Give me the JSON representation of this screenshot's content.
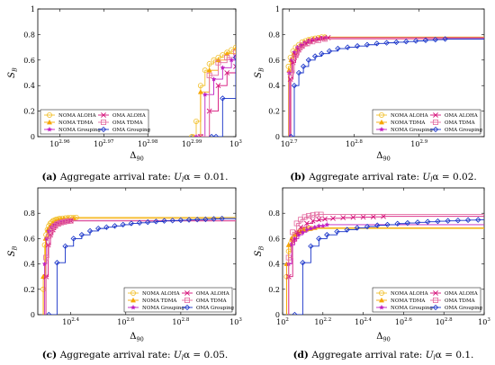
{
  "colors": {
    "noma_aloha": "#f2c12e",
    "noma_tdma": "#f7a600",
    "noma_grouping": "#c020c0",
    "oma_aloha": "#d6127a",
    "oma_tdma": "#e36ba0",
    "oma_grouping": "#1530c8"
  },
  "legend": [
    {
      "label": "NOMA ALOHA",
      "color": "#f2c12e",
      "marker": "circle"
    },
    {
      "label": "OMA ALOHA",
      "color": "#d6127a",
      "marker": "x"
    },
    {
      "label": "NOMA TDMA",
      "color": "#f7a600",
      "marker": "triangle"
    },
    {
      "label": "OMA TDMA",
      "color": "#e36ba0",
      "marker": "square"
    },
    {
      "label": "NOMA Grouping",
      "color": "#c020c0",
      "marker": "star"
    },
    {
      "label": "OMA Grouping",
      "color": "#1530c8",
      "marker": "diamond"
    }
  ],
  "chart_data": [
    {
      "panel": "a",
      "type": "line",
      "caption_bold": "(a)",
      "caption_text": "Aggregate arrival rate: ",
      "caption_math": "U",
      "caption_sub": "l",
      "caption_rest": "α = 0.01.",
      "xlabel": "Δ",
      "xlabel_sub": "90",
      "ylabel": "S",
      "ylabel_sub": "B",
      "x_log": true,
      "xlim": [
        2.955,
        3.0
      ],
      "ylim": [
        0,
        1
      ],
      "xticks": [
        {
          "base": "10",
          "exp": "2.96",
          "v": 2.96
        },
        {
          "base": "10",
          "exp": "2.97",
          "v": 2.97
        },
        {
          "base": "10",
          "exp": "2.98",
          "v": 2.98
        },
        {
          "base": "10",
          "exp": "2.99",
          "v": 2.99
        },
        {
          "base": "10",
          "exp": "3",
          "v": 3.0
        }
      ],
      "yticks": [
        "0",
        "0.2",
        "0.4",
        "0.6",
        "0.8",
        "1"
      ],
      "legend_pos": "bottom-left",
      "series": [
        {
          "name": "NOMA ALOHA",
          "color": "#f2c12e",
          "marker": "circle",
          "x": [
            2.99,
            2.991,
            2.992,
            2.993,
            2.994,
            2.995,
            2.996,
            2.997,
            2.998,
            2.999,
            3.0
          ],
          "y": [
            0,
            0.12,
            0.4,
            0.52,
            0.57,
            0.6,
            0.62,
            0.64,
            0.66,
            0.68,
            0.7
          ]
        },
        {
          "name": "NOMA TDMA",
          "color": "#f7a600",
          "marker": "triangle",
          "x": [
            2.9905,
            2.992,
            2.994,
            2.996,
            2.998,
            3.0
          ],
          "y": [
            0,
            0.35,
            0.52,
            0.6,
            0.65,
            0.69
          ]
        },
        {
          "name": "NOMA Grouping",
          "color": "#c020c0",
          "marker": "star",
          "x": [
            2.991,
            2.993,
            2.995,
            2.997,
            2.999,
            3.0
          ],
          "y": [
            0,
            0.33,
            0.45,
            0.54,
            0.6,
            0.63
          ]
        },
        {
          "name": "OMA ALOHA",
          "color": "#d6127a",
          "marker": "x",
          "x": [
            2.992,
            2.994,
            2.996,
            2.998,
            3.0
          ],
          "y": [
            0,
            0.2,
            0.4,
            0.5,
            0.55
          ]
        },
        {
          "name": "OMA TDMA",
          "color": "#e36ba0",
          "marker": "square",
          "x": [
            2.992,
            2.994,
            2.996,
            2.998,
            3.0
          ],
          "y": [
            0,
            0.48,
            0.58,
            0.62,
            0.66
          ]
        },
        {
          "name": "OMA Grouping",
          "color": "#1530c8",
          "marker": "diamond",
          "x": [
            2.9945,
            2.9955,
            2.997,
            3.0
          ],
          "y": [
            0,
            0.0,
            0.3,
            0.62
          ]
        }
      ]
    },
    {
      "panel": "b",
      "type": "line",
      "caption_bold": "(b)",
      "caption_text": "Aggregate arrival rate: ",
      "caption_math": "U",
      "caption_sub": "l",
      "caption_rest": "α = 0.02.",
      "xlabel": "Δ",
      "xlabel_sub": "90",
      "ylabel": "S",
      "ylabel_sub": "B",
      "x_log": true,
      "xlim": [
        2.69,
        3.0
      ],
      "ylim": [
        0,
        1
      ],
      "xticks": [
        {
          "base": "10",
          "exp": "2.7",
          "v": 2.7
        },
        {
          "base": "10",
          "exp": "2.8",
          "v": 2.8
        },
        {
          "base": "10",
          "exp": "2.9",
          "v": 2.9
        }
      ],
      "yticks": [
        "0",
        "0.2",
        "0.4",
        "0.6",
        "0.8",
        "1"
      ],
      "legend_pos": "bottom-right",
      "series": [
        {
          "name": "NOMA ALOHA",
          "color": "#f2c12e",
          "marker": "circle",
          "x": [
            2.699,
            2.702,
            2.706,
            2.71,
            2.715,
            2.72,
            2.725,
            2.73,
            2.735,
            2.74,
            2.745,
            2.75,
            2.755
          ],
          "y": [
            0.55,
            0.62,
            0.67,
            0.7,
            0.72,
            0.74,
            0.75,
            0.76,
            0.765,
            0.77,
            0.775,
            0.78,
            0.78
          ]
        },
        {
          "name": "NOMA TDMA",
          "color": "#f7a600",
          "marker": "triangle",
          "x": [
            2.7,
            2.703,
            2.707,
            2.712,
            2.718,
            2.724,
            2.73,
            2.738,
            2.746,
            2.755
          ],
          "y": [
            0.52,
            0.6,
            0.65,
            0.69,
            0.72,
            0.74,
            0.755,
            0.765,
            0.77,
            0.775
          ]
        },
        {
          "name": "NOMA Grouping",
          "color": "#c020c0",
          "marker": "star",
          "x": [
            2.7,
            2.704,
            2.708,
            2.713,
            2.718,
            2.724,
            2.73,
            2.736,
            2.743,
            2.75,
            2.757
          ],
          "y": [
            0.5,
            0.6,
            0.66,
            0.7,
            0.72,
            0.735,
            0.75,
            0.76,
            0.765,
            0.77,
            0.775
          ]
        },
        {
          "name": "OMA ALOHA",
          "color": "#d6127a",
          "marker": "x",
          "x": [
            2.702,
            2.706,
            2.71,
            2.715,
            2.72,
            2.726,
            2.732,
            2.738,
            2.745,
            2.752,
            2.76
          ],
          "y": [
            0.45,
            0.58,
            0.64,
            0.68,
            0.71,
            0.73,
            0.745,
            0.755,
            0.765,
            0.77,
            0.775
          ]
        },
        {
          "name": "OMA TDMA",
          "color": "#e36ba0",
          "marker": "square",
          "x": [
            2.703,
            2.708,
            2.714,
            2.72,
            2.728,
            2.736,
            2.745,
            2.755
          ],
          "y": [
            0.5,
            0.62,
            0.68,
            0.71,
            0.73,
            0.745,
            0.755,
            0.765
          ]
        },
        {
          "name": "OMA Grouping",
          "color": "#1530c8",
          "marker": "diamond",
          "x": [
            2.703,
            2.708,
            2.715,
            2.722,
            2.73,
            2.74,
            2.75,
            2.762,
            2.775,
            2.79,
            2.805,
            2.82,
            2.835,
            2.85,
            2.865,
            2.88,
            2.895,
            2.91,
            2.925,
            2.94
          ],
          "y": [
            0,
            0.4,
            0.5,
            0.55,
            0.6,
            0.63,
            0.65,
            0.67,
            0.69,
            0.7,
            0.71,
            0.72,
            0.73,
            0.735,
            0.74,
            0.745,
            0.75,
            0.755,
            0.76,
            0.765
          ]
        }
      ]
    },
    {
      "panel": "c",
      "type": "line",
      "caption_bold": "(c)",
      "caption_text": "Aggregate arrival rate: ",
      "caption_math": "U",
      "caption_sub": "l",
      "caption_rest": "α = 0.05.",
      "xlabel": "Δ",
      "xlabel_sub": "90",
      "ylabel": "S",
      "ylabel_sub": "B",
      "x_log": true,
      "xlim": [
        2.28,
        3.0
      ],
      "ylim": [
        0,
        1
      ],
      "xticks": [
        {
          "base": "10",
          "exp": "2.4",
          "v": 2.4
        },
        {
          "base": "10",
          "exp": "2.6",
          "v": 2.6
        },
        {
          "base": "10",
          "exp": "2.8",
          "v": 2.8
        },
        {
          "base": "10",
          "exp": "",
          "v": 3.0,
          "plain": "10",
          "sup3": "3"
        }
      ],
      "yticks": [
        "0",
        "0.2",
        "0.4",
        "0.6",
        "0.8"
      ],
      "legend_pos": "bottom-right",
      "series": [
        {
          "name": "NOMA ALOHA",
          "color": "#f2c12e",
          "marker": "circle",
          "x": [
            2.3,
            2.305,
            2.31,
            2.315,
            2.32,
            2.325,
            2.33,
            2.335,
            2.34,
            2.345,
            2.35,
            2.355,
            2.36,
            2.37,
            2.38,
            2.39,
            2.4,
            2.41,
            2.42
          ],
          "y": [
            0.2,
            0.55,
            0.63,
            0.67,
            0.7,
            0.72,
            0.73,
            0.74,
            0.745,
            0.75,
            0.752,
            0.755,
            0.758,
            0.76,
            0.762,
            0.764,
            0.765,
            0.766,
            0.767
          ]
        },
        {
          "name": "NOMA TDMA",
          "color": "#f7a600",
          "marker": "triangle",
          "x": [
            2.3,
            2.308,
            2.316,
            2.325,
            2.335,
            2.345,
            2.355,
            2.365,
            2.375,
            2.39,
            2.41
          ],
          "y": [
            0.3,
            0.6,
            0.67,
            0.7,
            0.72,
            0.735,
            0.745,
            0.75,
            0.755,
            0.758,
            0.76
          ]
        },
        {
          "name": "NOMA Grouping",
          "color": "#c020c0",
          "marker": "star",
          "x": [
            2.305,
            2.312,
            2.32,
            2.33,
            2.34,
            2.35,
            2.36,
            2.37,
            2.38,
            2.39,
            2.4
          ],
          "y": [
            0.4,
            0.6,
            0.66,
            0.69,
            0.71,
            0.72,
            0.73,
            0.735,
            0.738,
            0.74,
            0.742
          ]
        },
        {
          "name": "OMA ALOHA",
          "color": "#d6127a",
          "marker": "x",
          "x": [
            2.31,
            2.318,
            2.326,
            2.335,
            2.345,
            2.355,
            2.365,
            2.375,
            2.385,
            2.4
          ],
          "y": [
            0.3,
            0.55,
            0.63,
            0.67,
            0.7,
            0.715,
            0.725,
            0.73,
            0.735,
            0.74
          ]
        },
        {
          "name": "OMA TDMA",
          "color": "#e36ba0",
          "marker": "square",
          "x": [
            2.31,
            2.32,
            2.33,
            2.34,
            2.35,
            2.36,
            2.37,
            2.38,
            2.39,
            2.4
          ],
          "y": [
            0.45,
            0.62,
            0.67,
            0.7,
            0.715,
            0.725,
            0.73,
            0.735,
            0.738,
            0.74
          ]
        },
        {
          "name": "OMA Grouping",
          "color": "#1530c8",
          "marker": "diamond",
          "x": [
            2.32,
            2.35,
            2.38,
            2.41,
            2.44,
            2.47,
            2.5,
            2.53,
            2.56,
            2.59,
            2.62,
            2.65,
            2.68,
            2.71,
            2.74,
            2.77,
            2.8,
            2.83,
            2.86,
            2.89,
            2.92,
            2.95
          ],
          "y": [
            0,
            0.41,
            0.54,
            0.6,
            0.63,
            0.66,
            0.68,
            0.69,
            0.7,
            0.71,
            0.72,
            0.725,
            0.73,
            0.735,
            0.74,
            0.742,
            0.745,
            0.748,
            0.75,
            0.752,
            0.755,
            0.758
          ]
        }
      ]
    },
    {
      "panel": "d",
      "type": "line",
      "caption_bold": "(d)",
      "caption_text": "Aggregate arrival rate: ",
      "caption_math": "U",
      "caption_sub": "l",
      "caption_rest": "α = 0.1.",
      "xlabel": "Δ",
      "xlabel_sub": "90",
      "ylabel": "S",
      "ylabel_sub": "B",
      "x_log": true,
      "xlim": [
        2.0,
        3.0
      ],
      "ylim": [
        0,
        1
      ],
      "xticks": [
        {
          "base": "10",
          "exp": "2",
          "v": 2.0
        },
        {
          "base": "10",
          "exp": "2.2",
          "v": 2.2
        },
        {
          "base": "10",
          "exp": "2.4",
          "v": 2.4
        },
        {
          "base": "10",
          "exp": "2.6",
          "v": 2.6
        },
        {
          "base": "10",
          "exp": "2.8",
          "v": 2.8
        },
        {
          "base": "10",
          "exp": "3",
          "v": 3.0
        }
      ],
      "yticks": [
        "0",
        "0.2",
        "0.4",
        "0.6",
        "0.8"
      ],
      "legend_pos": "bottom-right",
      "series": [
        {
          "name": "NOMA ALOHA",
          "color": "#f2c12e",
          "marker": "circle",
          "x": [
            2.02,
            2.03,
            2.04,
            2.05,
            2.06,
            2.07,
            2.08,
            2.09,
            2.1,
            2.11,
            2.12,
            2.13,
            2.14
          ],
          "y": [
            0.3,
            0.5,
            0.56,
            0.6,
            0.62,
            0.64,
            0.65,
            0.66,
            0.665,
            0.67,
            0.675,
            0.68,
            0.68
          ]
        },
        {
          "name": "NOMA TDMA",
          "color": "#f7a600",
          "marker": "triangle",
          "x": [
            2.02,
            2.03,
            2.045,
            2.06,
            2.075,
            2.09,
            2.105,
            2.12,
            2.14,
            2.16
          ],
          "y": [
            0.4,
            0.55,
            0.6,
            0.63,
            0.65,
            0.66,
            0.67,
            0.675,
            0.68,
            0.685
          ]
        },
        {
          "name": "NOMA Grouping",
          "color": "#c020c0",
          "marker": "star",
          "x": [
            2.03,
            2.045,
            2.06,
            2.08,
            2.1,
            2.12,
            2.14,
            2.16,
            2.18,
            2.2,
            2.22
          ],
          "y": [
            0.4,
            0.55,
            0.6,
            0.63,
            0.65,
            0.67,
            0.68,
            0.69,
            0.7,
            0.7,
            0.71
          ]
        },
        {
          "name": "OMA ALOHA",
          "color": "#d6127a",
          "marker": "x",
          "x": [
            2.03,
            2.05,
            2.07,
            2.09,
            2.12,
            2.15,
            2.18,
            2.21,
            2.25,
            2.3,
            2.35,
            2.4,
            2.45,
            2.5
          ],
          "y": [
            0.3,
            0.58,
            0.65,
            0.69,
            0.72,
            0.74,
            0.75,
            0.755,
            0.76,
            0.765,
            0.768,
            0.77,
            0.772,
            0.775
          ]
        },
        {
          "name": "OMA TDMA",
          "color": "#e36ba0",
          "marker": "square",
          "x": [
            2.03,
            2.05,
            2.07,
            2.09,
            2.11,
            2.13,
            2.15,
            2.17,
            2.19
          ],
          "y": [
            0.45,
            0.65,
            0.72,
            0.75,
            0.77,
            0.78,
            0.785,
            0.79,
            0.79
          ]
        },
        {
          "name": "OMA Grouping",
          "color": "#1530c8",
          "marker": "diamond",
          "x": [
            2.06,
            2.1,
            2.14,
            2.18,
            2.22,
            2.27,
            2.32,
            2.37,
            2.42,
            2.47,
            2.52,
            2.57,
            2.62,
            2.67,
            2.72,
            2.77,
            2.82,
            2.87,
            2.92,
            2.97
          ],
          "y": [
            0,
            0.41,
            0.54,
            0.6,
            0.63,
            0.655,
            0.67,
            0.685,
            0.695,
            0.705,
            0.71,
            0.718,
            0.723,
            0.728,
            0.733,
            0.737,
            0.74,
            0.743,
            0.746,
            0.748
          ]
        }
      ]
    }
  ]
}
